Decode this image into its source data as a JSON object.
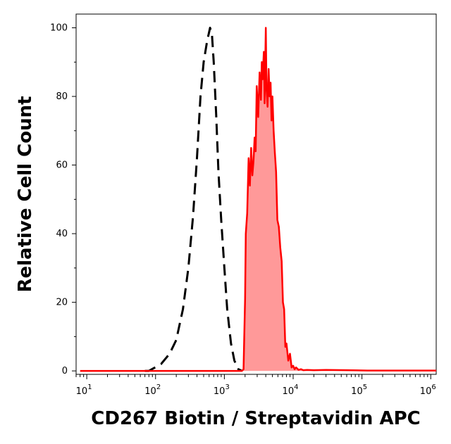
{
  "chart_data": {
    "type": "area",
    "xlabel": "CD267 Biotin / Streptavidin APC",
    "ylabel": "Relative Cell Count",
    "x_scale": "log",
    "xlim": [
      7,
      1200000
    ],
    "ylim": [
      -1,
      104
    ],
    "x_ticks": [
      {
        "value": 10,
        "base": "10",
        "exp": "1"
      },
      {
        "value": 100,
        "base": "10",
        "exp": "2"
      },
      {
        "value": 1000,
        "base": "10",
        "exp": "3"
      },
      {
        "value": 10000,
        "base": "10",
        "exp": "4"
      },
      {
        "value": 100000,
        "base": "10",
        "exp": "5"
      },
      {
        "value": 1000000,
        "base": "10",
        "exp": "6"
      }
    ],
    "y_ticks": [
      0,
      20,
      40,
      60,
      80,
      100
    ],
    "grid": false,
    "series": [
      {
        "style": "dashed",
        "color": "#000000",
        "fill": "none",
        "x": [
          70,
          80,
          120,
          160,
          200,
          250,
          300,
          350,
          400,
          450,
          500,
          560,
          620,
          660,
          700,
          760,
          820,
          900,
          1000,
          1100,
          1250,
          1400,
          1600,
          1800
        ],
        "y": [
          0,
          0,
          2,
          5,
          9,
          18,
          30,
          45,
          62,
          80,
          90,
          96,
          100,
          98,
          90,
          75,
          58,
          44,
          30,
          18,
          8,
          3,
          0.5,
          0
        ]
      },
      {
        "style": "solid",
        "color": "#ff0000",
        "fill": "#ff9999",
        "x": [
          8,
          1800,
          1900,
          2000,
          2050,
          2150,
          2250,
          2350,
          2450,
          2550,
          2650,
          2750,
          2850,
          2950,
          3100,
          3250,
          3400,
          3500,
          3600,
          3750,
          3850,
          4000,
          4100,
          4250,
          4400,
          4550,
          4700,
          4850,
          5000,
          5200,
          5400,
          5650,
          5900,
          6200,
          6500,
          6800,
          7100,
          7400,
          7700,
          8000,
          8500,
          9000,
          9500,
          10000,
          10500,
          11000,
          12000,
          13000,
          14000,
          16000,
          20000,
          30000,
          60000,
          120000,
          300000,
          1200000
        ],
        "y": [
          0,
          0,
          0.5,
          21,
          40,
          46,
          62,
          54,
          65,
          57,
          61,
          68,
          64,
          83,
          74,
          87,
          79,
          90,
          85,
          93,
          78,
          100,
          82,
          77,
          88,
          80,
          84,
          73,
          80,
          70,
          64,
          58,
          44,
          42,
          36,
          32,
          20,
          18,
          7,
          8,
          3,
          5,
          1,
          1.5,
          0.5,
          1,
          0.3,
          0.5,
          0.2,
          0.3,
          0.2,
          0.3,
          0.2,
          0.1,
          0.1,
          0.1
        ]
      }
    ]
  }
}
